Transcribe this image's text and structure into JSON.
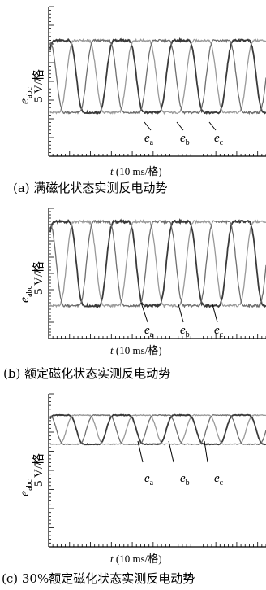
{
  "chart_data": [
    {
      "type": "line",
      "caption": "(a) 满磁化状态实测反电动势",
      "ylabel_symbol": "e",
      "ylabel_subscript": "abc",
      "ylabel_unit": "5 V/格",
      "xlabel_symbol": "t",
      "xlabel_unit": "(10 ms/格)",
      "series": [
        {
          "name_symbol": "e",
          "name_subscript": "a",
          "color": "#3a3a3a",
          "amplitude": 1.0,
          "phase_deg": 0
        },
        {
          "name_symbol": "e",
          "name_subscript": "b",
          "color": "#9a9a9a",
          "amplitude": 1.0,
          "phase_deg": -120
        },
        {
          "name_symbol": "e",
          "name_subscript": "c",
          "color": "#6e6e6e",
          "amplitude": 1.0,
          "phase_deg": 120
        }
      ],
      "waveform": "flat-topped",
      "cycles_shown": 3.6,
      "grid": false
    },
    {
      "type": "line",
      "caption": "(b) 额定磁化状态实测反电动势",
      "ylabel_symbol": "e",
      "ylabel_subscript": "abc",
      "ylabel_unit": "5 V/格",
      "xlabel_symbol": "t",
      "xlabel_unit": "(10 ms/格)",
      "series": [
        {
          "name_symbol": "e",
          "name_subscript": "a",
          "color": "#3a3a3a",
          "amplitude": 0.85,
          "phase_deg": 0
        },
        {
          "name_symbol": "e",
          "name_subscript": "b",
          "color": "#9a9a9a",
          "amplitude": 0.85,
          "phase_deg": -120
        },
        {
          "name_symbol": "e",
          "name_subscript": "c",
          "color": "#6e6e6e",
          "amplitude": 0.85,
          "phase_deg": 120
        }
      ],
      "waveform": "flat-topped",
      "cycles_shown": 3.6,
      "grid": false
    },
    {
      "type": "line",
      "caption": "(c) 30%额定磁化状态实测反电动势",
      "ylabel_symbol": "e",
      "ylabel_subscript": "abc",
      "ylabel_unit": "5 V/格",
      "xlabel_symbol": "t",
      "xlabel_unit": "(10 ms/格)",
      "series": [
        {
          "name_symbol": "e",
          "name_subscript": "a",
          "color": "#3a3a3a",
          "amplitude": 0.3,
          "phase_deg": 0
        },
        {
          "name_symbol": "e",
          "name_subscript": "b",
          "color": "#9a9a9a",
          "amplitude": 0.3,
          "phase_deg": -120
        },
        {
          "name_symbol": "e",
          "name_subscript": "c",
          "color": "#6e6e6e",
          "amplitude": 0.3,
          "phase_deg": 120
        }
      ],
      "waveform": "flat-topped",
      "cycles_shown": 3.6,
      "grid": false
    }
  ]
}
